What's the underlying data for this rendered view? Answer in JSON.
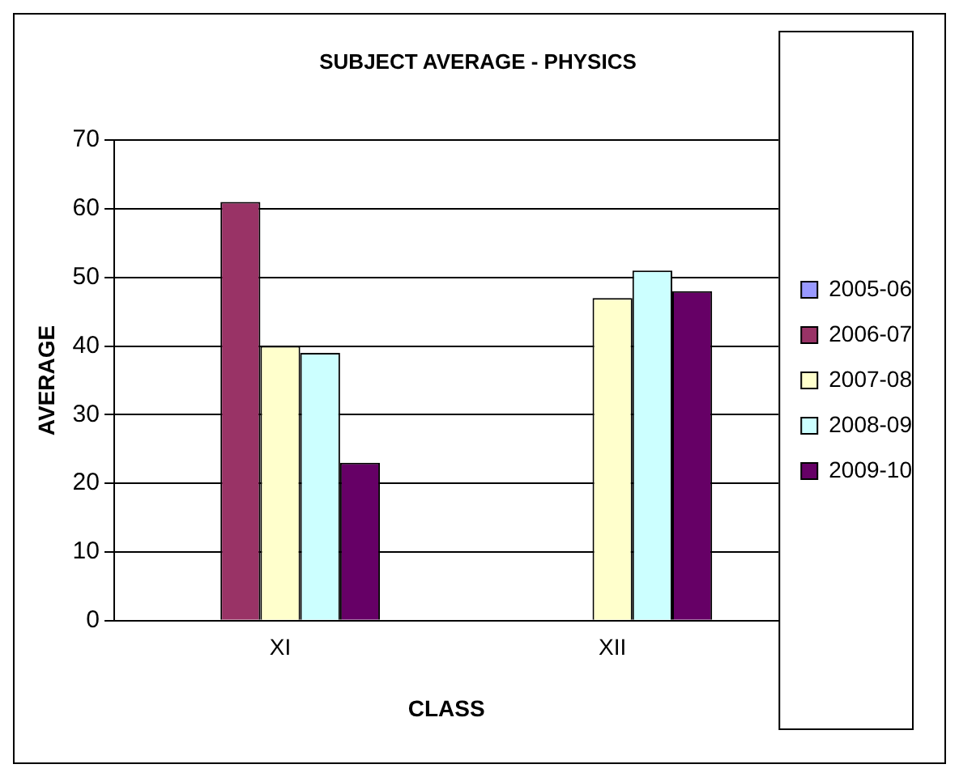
{
  "chart_data": {
    "type": "bar",
    "title": "SUBJECT AVERAGE - PHYSICS",
    "xlabel": "CLASS",
    "ylabel": "AVERAGE",
    "categories": [
      "XI",
      "XII"
    ],
    "series": [
      {
        "name": "2005-06",
        "color": "#9999ff",
        "values": [
          null,
          null
        ]
      },
      {
        "name": "2006-07",
        "color": "#993366",
        "values": [
          61,
          null
        ]
      },
      {
        "name": "2007-08",
        "color": "#ffffcc",
        "values": [
          40,
          47
        ]
      },
      {
        "name": "2008-09",
        "color": "#ccffff",
        "values": [
          39,
          51
        ]
      },
      {
        "name": "2009-10",
        "color": "#660066",
        "values": [
          23,
          48
        ]
      }
    ],
    "ylim": [
      0,
      70
    ],
    "yticks": [
      0,
      10,
      20,
      30,
      40,
      50,
      60,
      70
    ],
    "grid": "y",
    "legend": "right"
  }
}
